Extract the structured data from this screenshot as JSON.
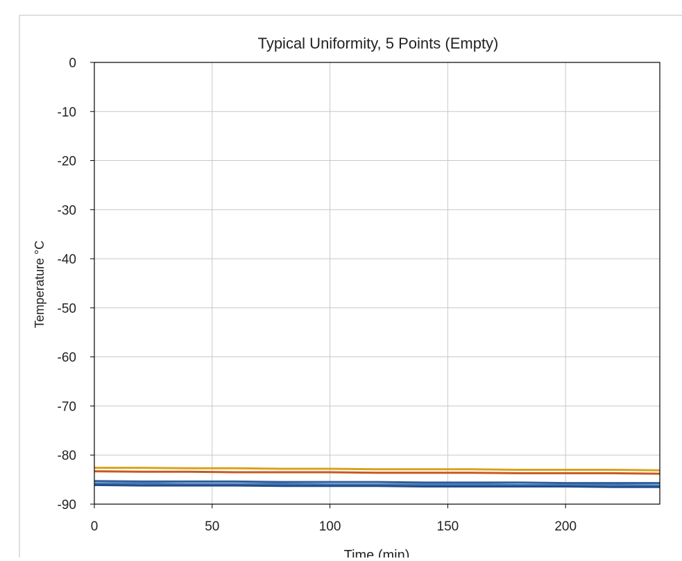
{
  "chart_data": {
    "type": "line",
    "title": "Typical Uniformity, 5 Points (Empty)",
    "xlabel": "Time (min)",
    "ylabel": "Temperature °C",
    "xlim": [
      0,
      240
    ],
    "ylim": [
      -90,
      0
    ],
    "xticks": [
      0,
      50,
      100,
      150,
      200
    ],
    "yticks": [
      0,
      -10,
      -20,
      -30,
      -40,
      -50,
      -60,
      -70,
      -80,
      -90
    ],
    "grid": true,
    "legend": "none",
    "series": [
      {
        "color": "#d9a21b",
        "x": [
          0,
          20,
          40,
          60,
          80,
          100,
          120,
          140,
          160,
          180,
          200,
          220,
          240
        ],
        "y": [
          -82.6,
          -82.6,
          -82.7,
          -82.7,
          -82.8,
          -82.8,
          -82.9,
          -82.9,
          -82.9,
          -83.0,
          -83.0,
          -83.0,
          -83.1
        ]
      },
      {
        "color": "#c55a1f",
        "x": [
          0,
          20,
          40,
          60,
          80,
          100,
          120,
          140,
          160,
          180,
          200,
          220,
          240
        ],
        "y": [
          -83.3,
          -83.4,
          -83.4,
          -83.5,
          -83.5,
          -83.5,
          -83.6,
          -83.6,
          -83.6,
          -83.7,
          -83.7,
          -83.7,
          -83.8
        ]
      },
      {
        "color": "#2e5f9e",
        "x": [
          0,
          20,
          40,
          60,
          80,
          100,
          120,
          140,
          160,
          180,
          200,
          220,
          240
        ],
        "y": [
          -85.3,
          -85.4,
          -85.4,
          -85.4,
          -85.5,
          -85.5,
          -85.5,
          -85.6,
          -85.6,
          -85.6,
          -85.7,
          -85.7,
          -85.7
        ]
      },
      {
        "color": "#4a78b4",
        "x": [
          0,
          20,
          40,
          60,
          80,
          100,
          120,
          140,
          160,
          180,
          200,
          220,
          240
        ],
        "y": [
          -85.8,
          -85.8,
          -85.9,
          -85.9,
          -85.9,
          -86.0,
          -86.0,
          -86.0,
          -86.0,
          -86.1,
          -86.1,
          -86.1,
          -86.2
        ]
      },
      {
        "color": "#1f4e8a",
        "x": [
          0,
          20,
          40,
          60,
          80,
          100,
          120,
          140,
          160,
          180,
          200,
          220,
          240
        ],
        "y": [
          -86.1,
          -86.2,
          -86.2,
          -86.2,
          -86.3,
          -86.3,
          -86.3,
          -86.4,
          -86.4,
          -86.4,
          -86.4,
          -86.5,
          -86.5
        ]
      }
    ]
  }
}
